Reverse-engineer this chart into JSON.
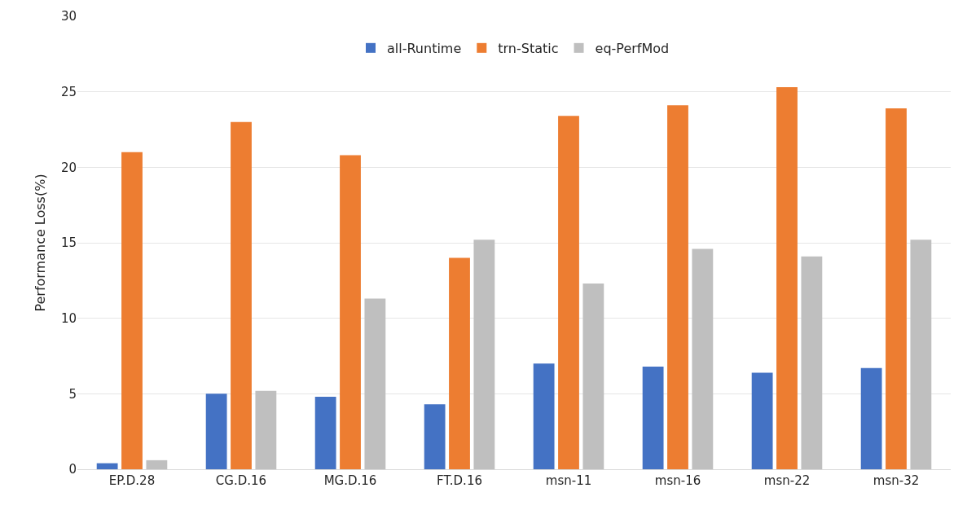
{
  "chart_data": {
    "type": "bar",
    "ylabel": "Performance Loss(%)",
    "categories": [
      "EP.D.28",
      "CG.D.16",
      "MG.D.16",
      "FT.D.16",
      "msn-11",
      "msn-16",
      "msn-22",
      "msn-32"
    ],
    "series": [
      {
        "name": "all-Runtime",
        "color": "#4472c4",
        "values": [
          0.4,
          5.0,
          4.8,
          4.3,
          7.0,
          6.8,
          6.4,
          6.7
        ]
      },
      {
        "name": "trn-Static",
        "color": "#ed7d31",
        "values": [
          21.0,
          23.0,
          20.8,
          14.0,
          23.4,
          24.1,
          25.3,
          23.9
        ]
      },
      {
        "name": "eq-PerfMod",
        "color": "#bfbfbf",
        "values": [
          0.6,
          5.2,
          11.3,
          15.2,
          12.3,
          14.6,
          14.1,
          15.2
        ]
      }
    ],
    "ylim": [
      0,
      30
    ],
    "yticks": [
      0,
      5,
      10,
      15,
      20,
      25,
      30
    ],
    "grid": "y",
    "legend": "top"
  }
}
